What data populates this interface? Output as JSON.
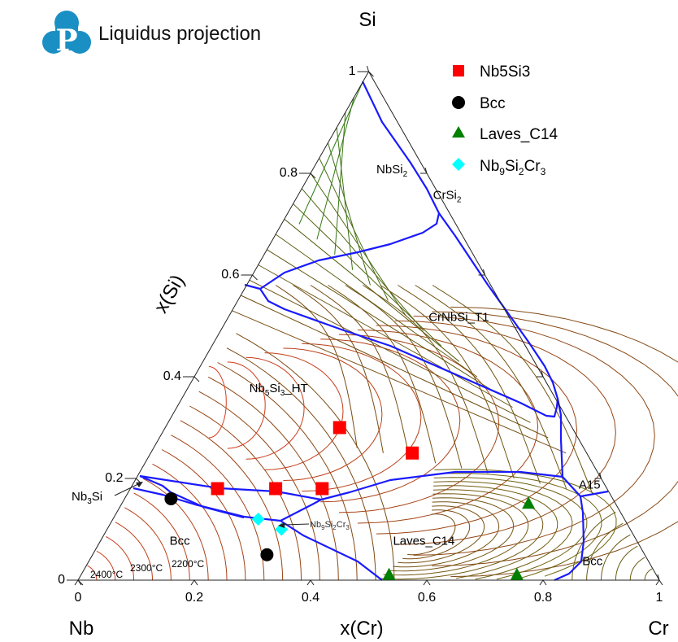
{
  "header": {
    "title": "Liquidus projection",
    "logo_letter": "P"
  },
  "chart_data": {
    "type": "ternary-liquidus-projection",
    "title": "Liquidus projection",
    "components": {
      "top": "Si",
      "left": "Nb",
      "right": "Cr"
    },
    "axis_labels": {
      "left_side": "x(Si)",
      "bottom": "x(Cr)"
    },
    "ticks": {
      "si": [
        "0",
        "0.2",
        "0.4",
        "0.6",
        "0.8",
        "1"
      ],
      "cr": [
        "0",
        "0.2",
        "0.4",
        "0.6",
        "0.8",
        "1"
      ]
    },
    "tick_values": [
      0,
      0.2,
      0.4,
      0.6,
      0.8,
      1
    ],
    "region_labels": [
      {
        "text": "NbSi",
        "sub": "2",
        "x_cr": 0.14,
        "x_si": 0.8
      },
      {
        "text": "CrSi",
        "sub": "2",
        "x_cr": 0.26,
        "x_si": 0.75
      },
      {
        "text": "CrNbSi_T1",
        "sub": "",
        "x_cr": 0.4,
        "x_si": 0.51
      },
      {
        "text": "Nb5Si3_HT",
        "sub": "",
        "x_cr": 0.16,
        "x_si": 0.37
      },
      {
        "text": "A15",
        "sub": "",
        "x_cr": 0.79,
        "x_si": 0.18
      },
      {
        "text": "Laves_C14",
        "sub": "",
        "x_cr": 0.56,
        "x_si": 0.07
      },
      {
        "text": "Bcc",
        "sub": "",
        "x_cr": 0.14,
        "x_si": 0.07
      },
      {
        "text": "Bcc",
        "sub": "",
        "x_cr": 0.87,
        "x_si": 0.03
      }
    ],
    "annotations": [
      {
        "text": "Nb3Si",
        "points_to": "Nb3Si primary field"
      },
      {
        "text": "Nb9Si2Cr3",
        "points_to": "Nb9Si2Cr3 primary field"
      },
      {
        "text": "2400°C"
      },
      {
        "text": "2300°C"
      },
      {
        "text": "2200°C"
      }
    ],
    "legend": {
      "placement": "top-right",
      "entries": [
        {
          "label": "Nb5Si3",
          "marker": "square",
          "color": "#ff0000"
        },
        {
          "label": "Bcc",
          "marker": "circle",
          "color": "#000000"
        },
        {
          "label": "Laves_C14",
          "marker": "triangle",
          "color": "#008000"
        },
        {
          "label": "Nb9Si2Cr3",
          "marker": "diamond",
          "color": "#00ffff"
        }
      ]
    },
    "series": [
      {
        "name": "Nb5Si3",
        "marker": "square",
        "color": "#ff0000",
        "points": [
          {
            "x_cr": 0.3,
            "x_si": 0.3
          },
          {
            "x_cr": 0.45,
            "x_si": 0.25
          },
          {
            "x_cr": 0.15,
            "x_si": 0.18
          },
          {
            "x_cr": 0.25,
            "x_si": 0.18
          },
          {
            "x_cr": 0.33,
            "x_si": 0.18
          }
        ]
      },
      {
        "name": "Bcc",
        "marker": "circle",
        "color": "#000000",
        "points": [
          {
            "x_cr": 0.08,
            "x_si": 0.16
          },
          {
            "x_cr": 0.3,
            "x_si": 0.05
          }
        ]
      },
      {
        "name": "Laves_C14",
        "marker": "triangle",
        "color": "#008000",
        "points": [
          {
            "x_cr": 0.7,
            "x_si": 0.15
          },
          {
            "x_cr": 0.53,
            "x_si": 0.01
          },
          {
            "x_cr": 0.75,
            "x_si": 0.01
          }
        ]
      },
      {
        "name": "Nb9Si2Cr3",
        "marker": "diamond",
        "color": "#00ffff",
        "points": [
          {
            "x_cr": 0.25,
            "x_si": 0.12
          },
          {
            "x_cr": 0.3,
            "x_si": 0.1
          }
        ]
      }
    ],
    "colors": {
      "boundary": "#1a1aff",
      "isotherm_hot": "#d83a1a",
      "isotherm_mid": "#7a4a12",
      "isotherm_cool": "#2e7d12"
    }
  }
}
